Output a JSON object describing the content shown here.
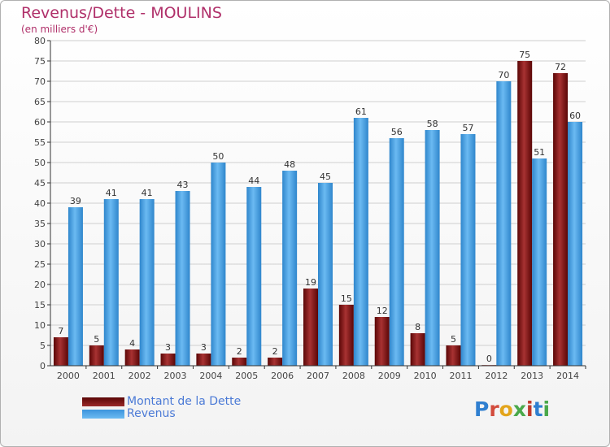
{
  "title": "Revenus/Dette - MOULINS",
  "subtitle": "(en milliers d'€)",
  "brand": "Proxiti",
  "colors": {
    "dette": "#7a1010",
    "revenus": "#4aa2e6",
    "grid": "#cfcfcf",
    "axis": "#333333"
  },
  "chart_data": {
    "type": "bar",
    "title": "Revenus/Dette - MOULINS",
    "subtitle": "(en milliers d'€)",
    "categories": [
      "2000",
      "2001",
      "2002",
      "2003",
      "2004",
      "2005",
      "2006",
      "2007",
      "2008",
      "2009",
      "2010",
      "2011",
      "2012",
      "2013",
      "2014"
    ],
    "series": [
      {
        "name": "Montant de la Dette",
        "values": [
          7,
          5,
          4,
          3,
          3,
          2,
          2,
          19,
          15,
          12,
          8,
          5,
          0,
          75,
          72
        ]
      },
      {
        "name": "Revenus",
        "values": [
          39,
          41,
          41,
          43,
          50,
          44,
          48,
          45,
          61,
          56,
          58,
          57,
          70,
          51,
          60
        ]
      }
    ],
    "ylim": [
      0,
      80
    ],
    "ytick_step": 5,
    "grid": true,
    "legend_position": "bottom-left"
  }
}
